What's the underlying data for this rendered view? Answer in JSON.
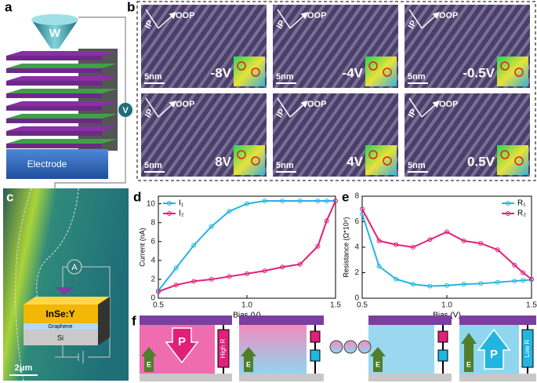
{
  "panels": {
    "a": {
      "label": "a",
      "tip": "W",
      "source": "V",
      "base": "Electrode"
    },
    "b": {
      "label": "b",
      "images": [
        {
          "axis1": "IP",
          "axis2": "OOP",
          "scale": "5nm",
          "voltage": "-8V"
        },
        {
          "axis1": "IP",
          "axis2": "OOP",
          "scale": "5nm",
          "voltage": "-4V"
        },
        {
          "axis1": "IP",
          "axis2": "OOP",
          "scale": "5nm",
          "voltage": "-0.5V"
        },
        {
          "axis1": "IP",
          "axis2": "OOP",
          "scale": "5nm",
          "voltage": "8V"
        },
        {
          "axis1": "IP",
          "axis2": "OOP",
          "scale": "5nm",
          "voltage": "4V"
        },
        {
          "axis1": "IP",
          "axis2": "OOP",
          "scale": "5nm",
          "voltage": "0.5V"
        }
      ]
    },
    "c": {
      "label": "c",
      "meter": "A",
      "layers": [
        "InSe:Y",
        "Graphene",
        "Si"
      ],
      "scale": "2μm"
    },
    "f": {
      "label": "f",
      "states": [
        {
          "polarization": "P",
          "resistance": "High R",
          "field": "E"
        },
        {
          "field": "E"
        },
        {
          "field": "E"
        },
        {
          "polarization": "P",
          "resistance": "Low R",
          "field": "E"
        }
      ]
    }
  },
  "chart_data": [
    {
      "type": "line",
      "label": "d",
      "x_label": "Bias (V)",
      "y_label": "Current (nA)",
      "legend": "upper left",
      "x": [
        0.5,
        0.6,
        0.7,
        0.8,
        0.9,
        1.0,
        1.1,
        1.2,
        1.3,
        1.4,
        1.45,
        1.5
      ],
      "series": [
        {
          "name": "I₁",
          "color": "#22b5e0",
          "values": [
            0.8,
            3.2,
            5.6,
            7.6,
            9.2,
            10.0,
            10.3,
            10.3,
            10.3,
            10.3,
            10.3,
            10.3
          ]
        },
        {
          "name": "I₂",
          "color": "#e0207a",
          "values": [
            0.7,
            1.4,
            1.8,
            2.0,
            2.3,
            2.6,
            2.9,
            3.3,
            3.6,
            5.5,
            8.2,
            10.3
          ]
        }
      ],
      "xlim": [
        0.5,
        1.5
      ],
      "xticks": [
        0.5,
        {
          "value": 1.0,
          "label": "1.0"
        },
        1.5
      ],
      "ylim": [
        0,
        10.8
      ],
      "yticks": [
        0,
        2,
        4,
        6,
        8,
        10
      ]
    },
    {
      "type": "line",
      "label": "e",
      "x_label": "Bias (V)",
      "y_label": "Resistance (Ω*10⁸)",
      "legend": "upper right",
      "x": [
        0.5,
        0.6,
        0.7,
        0.8,
        0.9,
        1.0,
        1.1,
        1.2,
        1.3,
        1.4,
        1.45,
        1.5
      ],
      "series": [
        {
          "name": "R₁",
          "color": "#22b5e0",
          "values": [
            6.6,
            2.5,
            1.5,
            1.1,
            0.95,
            1.0,
            1.1,
            1.15,
            1.25,
            1.35,
            1.4,
            1.45
          ]
        },
        {
          "name": "R₂",
          "color": "#e0207a",
          "values": [
            7.0,
            4.5,
            4.2,
            4.0,
            4.6,
            5.2,
            4.5,
            4.3,
            3.8,
            2.6,
            2.0,
            1.5
          ]
        }
      ],
      "xlim": [
        0.5,
        1.5
      ],
      "xticks": [
        0.5,
        {
          "value": 1.0,
          "label": "1.0"
        },
        1.5
      ],
      "ylim": [
        0,
        8
      ],
      "yticks": [
        0,
        2,
        4,
        6,
        8
      ]
    }
  ]
}
